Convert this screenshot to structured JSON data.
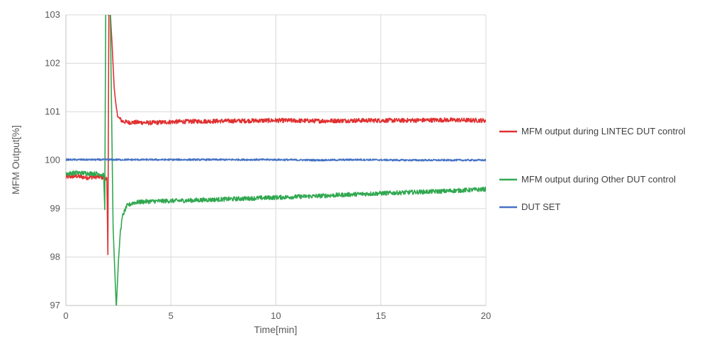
{
  "chart_data": {
    "type": "line",
    "title": "",
    "xlabel": "Time[min]",
    "ylabel": "MFM Output[%]",
    "xlim": [
      0,
      20
    ],
    "ylim": [
      97,
      103
    ],
    "x_ticks": [
      0,
      5,
      10,
      15,
      20
    ],
    "y_ticks": [
      97,
      98,
      99,
      100,
      101,
      102,
      103
    ],
    "grid": true,
    "legend_position": "right",
    "series": [
      {
        "name": "MFM output during LINTEC DUT control",
        "color": "#e03030",
        "x": [
          0,
          0.5,
          1.0,
          1.5,
          1.95,
          2.0,
          2.05,
          2.08,
          2.12,
          2.2,
          2.3,
          2.4,
          2.5,
          2.7,
          3.0,
          3.5,
          4.0,
          5.0,
          6.0,
          8.0,
          10.0,
          12.0,
          14.0,
          16.0,
          18.0,
          20.0
        ],
        "values": [
          99.65,
          99.67,
          99.64,
          99.66,
          99.63,
          98.05,
          103.4,
          103.6,
          103.0,
          102.4,
          101.5,
          101.05,
          100.88,
          100.8,
          100.78,
          100.78,
          100.77,
          100.79,
          100.8,
          100.81,
          100.82,
          100.81,
          100.82,
          100.82,
          100.83,
          100.82
        ]
      },
      {
        "name": "MFM output during Other DUT control",
        "color": "#30a850",
        "x": [
          0,
          0.5,
          1.0,
          1.5,
          1.8,
          1.85,
          1.9,
          1.95,
          2.0,
          2.05,
          2.1,
          2.25,
          2.4,
          2.45,
          2.5,
          2.6,
          2.7,
          2.9,
          3.2,
          3.6,
          4.0,
          5.0,
          6.0,
          8.0,
          10.0,
          12.0,
          14.0,
          16.0,
          18.0,
          20.0
        ],
        "values": [
          99.72,
          99.74,
          99.73,
          99.72,
          99.7,
          98.98,
          103.3,
          103.5,
          103.0,
          103.4,
          103.5,
          98.6,
          96.95,
          97.4,
          97.9,
          98.55,
          98.85,
          99.05,
          99.12,
          99.14,
          99.15,
          99.16,
          99.17,
          99.2,
          99.23,
          99.26,
          99.3,
          99.33,
          99.36,
          99.4
        ]
      },
      {
        "name": "DUT SET",
        "color": "#4472c4",
        "x": [
          0,
          2,
          4,
          6,
          8,
          10,
          12,
          14,
          16,
          18,
          20
        ],
        "values": [
          100.01,
          100.01,
          100.01,
          100.01,
          100.01,
          100.01,
          100.0,
          100.01,
          100.0,
          100.0,
          100.0
        ]
      }
    ]
  }
}
